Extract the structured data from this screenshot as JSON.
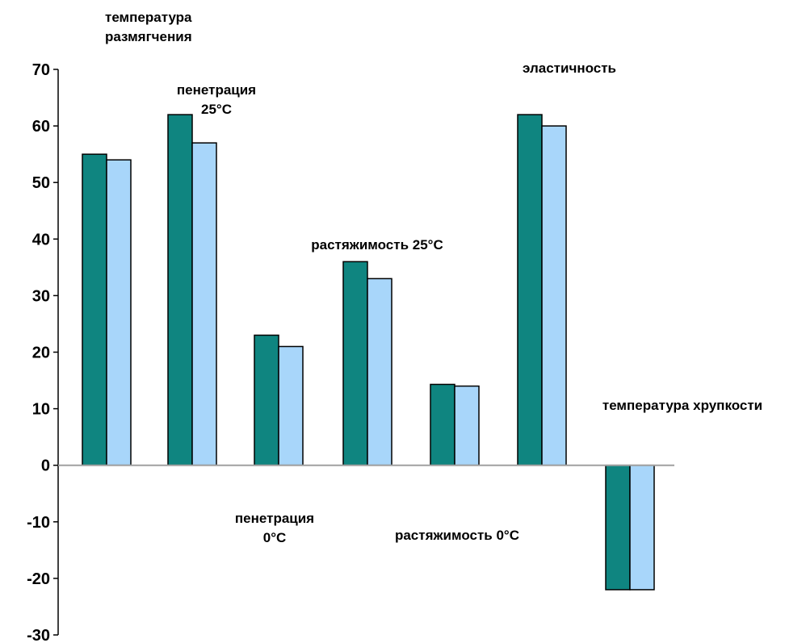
{
  "chart_data": {
    "type": "bar",
    "categories": [
      "температура размягчения",
      "пенетрация 25°C",
      "пенетрация 0°C",
      "растяжимость 25°C",
      "растяжимость 0°C",
      "эластичность",
      "температура хрупкости"
    ],
    "series": [
      {
        "values": [
          55,
          62,
          23,
          36,
          14.3,
          62,
          -22
        ]
      },
      {
        "values": [
          54,
          57,
          21,
          33,
          14,
          60,
          -22
        ]
      }
    ],
    "colors": [
      "#0f8580",
      "#a8d6fa"
    ],
    "ylim": [
      -30,
      70
    ],
    "yticks": [
      70,
      60,
      50,
      40,
      30,
      20,
      10,
      0,
      -10,
      -20,
      -30
    ],
    "annotations": [
      {
        "lines": [
          "температура",
          "размягчения"
        ]
      },
      {
        "lines": [
          "пенетрация",
          "25°C"
        ]
      },
      {
        "lines": [
          "пенетрация",
          "0°C"
        ]
      },
      {
        "lines": [
          "растяжимость 25°C"
        ]
      },
      {
        "lines": [
          "растяжимость 0°C"
        ]
      },
      {
        "lines": [
          "эластичность"
        ]
      },
      {
        "lines": [
          "температура хрупкости"
        ]
      }
    ],
    "grid": false,
    "legend": "none"
  }
}
